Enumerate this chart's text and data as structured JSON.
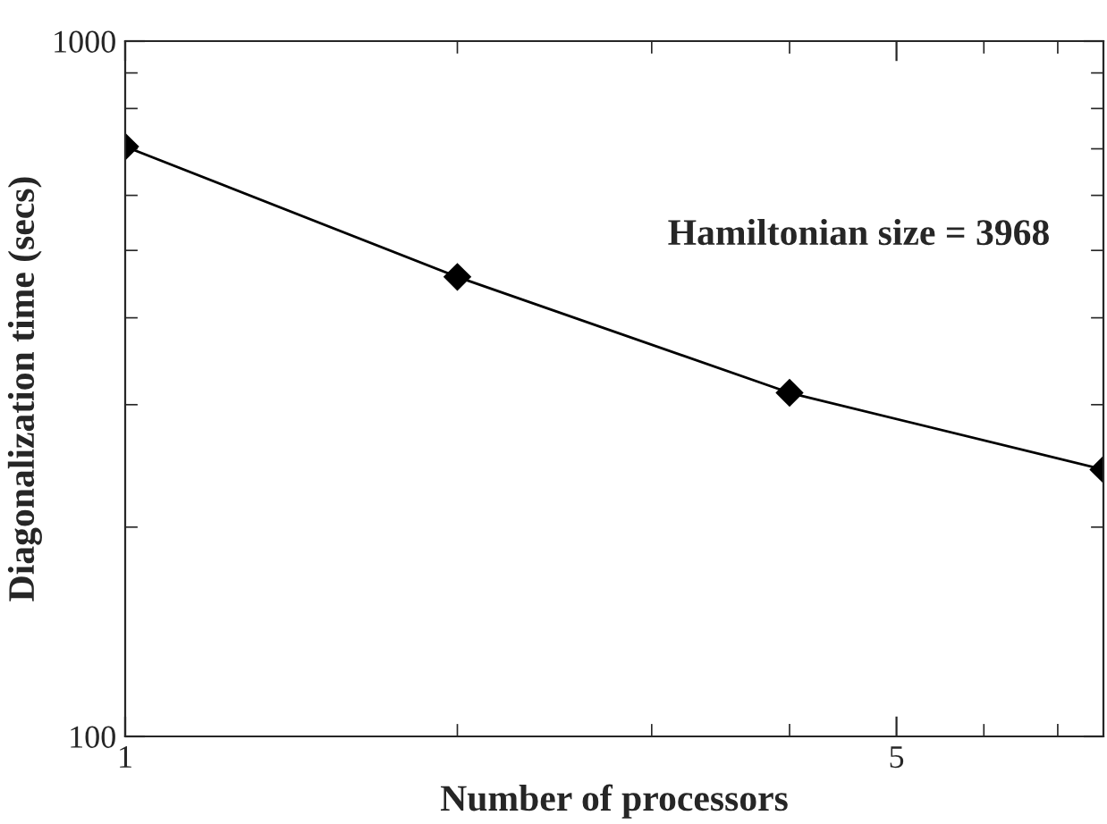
{
  "chart_data": {
    "type": "line",
    "xlabel": "Number of processors",
    "ylabel": "Diagonalization time (secs)",
    "annotations": [
      "Hamiltonian size = 3968"
    ],
    "x": [
      1,
      2,
      4,
      7.7
    ],
    "series": [
      {
        "color": "#000000",
        "values": [
          705,
          458,
          312,
          242
        ]
      }
    ],
    "log": "xy",
    "marker": "diamond",
    "line_style": "solid",
    "grid": false,
    "legend": false,
    "xlim": [
      1,
      7.7
    ],
    "xticks": [
      1,
      5
    ],
    "ylim": [
      100,
      1000
    ],
    "yticks": [
      100,
      1000
    ]
  }
}
